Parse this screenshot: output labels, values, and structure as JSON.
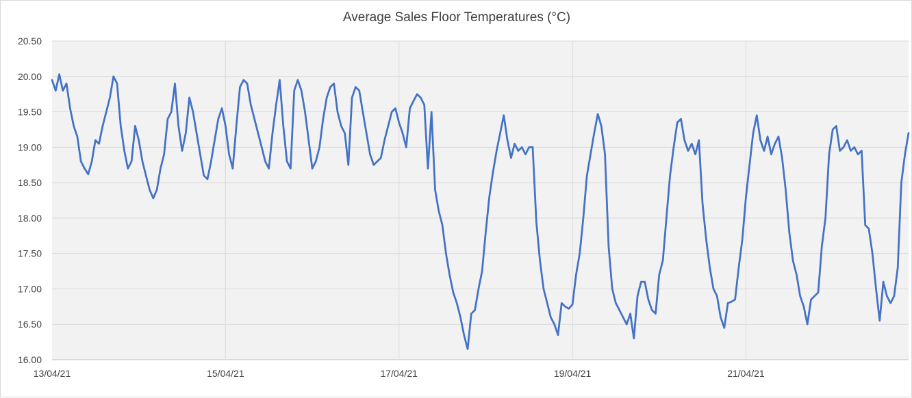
{
  "chart_data": {
    "type": "line",
    "title": "Average Sales Floor Temperatures (°C)",
    "xlabel": "",
    "ylabel": "",
    "ylim": [
      16.0,
      20.5
    ],
    "yticks": [
      "16.00",
      "16.50",
      "17.00",
      "17.50",
      "18.00",
      "18.50",
      "19.00",
      "19.50",
      "20.00",
      "20.50"
    ],
    "xlim": [
      "2021-04-13",
      "2021-04-22T21:00"
    ],
    "xticks": [
      "13/04/21",
      "15/04/21",
      "17/04/21",
      "19/04/21",
      "21/04/21"
    ],
    "xtick_dates": [
      "2021-04-13",
      "2021-04-15",
      "2021-04-17",
      "2021-04-19",
      "2021-04-21"
    ],
    "grid": true,
    "series": [
      {
        "color": "#4472c4",
        "points": [
          [
            "2021-04-13T00:00",
            19.95
          ],
          [
            "2021-04-13T01:00",
            19.8
          ],
          [
            "2021-04-13T02:00",
            20.03
          ],
          [
            "2021-04-13T03:00",
            19.8
          ],
          [
            "2021-04-13T04:00",
            19.9
          ],
          [
            "2021-04-13T05:00",
            19.55
          ],
          [
            "2021-04-13T06:00",
            19.3
          ],
          [
            "2021-04-13T07:00",
            19.15
          ],
          [
            "2021-04-13T08:00",
            18.8
          ],
          [
            "2021-04-13T09:00",
            18.7
          ],
          [
            "2021-04-13T10:00",
            18.62
          ],
          [
            "2021-04-13T11:00",
            18.8
          ],
          [
            "2021-04-13T12:00",
            19.1
          ],
          [
            "2021-04-13T13:00",
            19.05
          ],
          [
            "2021-04-13T14:00",
            19.3
          ],
          [
            "2021-04-13T15:00",
            19.5
          ],
          [
            "2021-04-13T16:00",
            19.7
          ],
          [
            "2021-04-13T17:00",
            20.0
          ],
          [
            "2021-04-13T18:00",
            19.9
          ],
          [
            "2021-04-13T19:00",
            19.3
          ],
          [
            "2021-04-13T20:00",
            18.95
          ],
          [
            "2021-04-13T21:00",
            18.7
          ],
          [
            "2021-04-13T22:00",
            18.8
          ],
          [
            "2021-04-13T23:00",
            19.3
          ],
          [
            "2021-04-14T00:00",
            19.1
          ],
          [
            "2021-04-14T01:00",
            18.8
          ],
          [
            "2021-04-14T02:00",
            18.6
          ],
          [
            "2021-04-14T03:00",
            18.4
          ],
          [
            "2021-04-14T04:00",
            18.28
          ],
          [
            "2021-04-14T05:00",
            18.4
          ],
          [
            "2021-04-14T06:00",
            18.7
          ],
          [
            "2021-04-14T07:00",
            18.9
          ],
          [
            "2021-04-14T08:00",
            19.4
          ],
          [
            "2021-04-14T09:00",
            19.5
          ],
          [
            "2021-04-14T10:00",
            19.9
          ],
          [
            "2021-04-14T11:00",
            19.3
          ],
          [
            "2021-04-14T12:00",
            18.95
          ],
          [
            "2021-04-14T13:00",
            19.2
          ],
          [
            "2021-04-14T14:00",
            19.7
          ],
          [
            "2021-04-14T15:00",
            19.5
          ],
          [
            "2021-04-14T16:00",
            19.2
          ],
          [
            "2021-04-14T17:00",
            18.9
          ],
          [
            "2021-04-14T18:00",
            18.6
          ],
          [
            "2021-04-14T19:00",
            18.55
          ],
          [
            "2021-04-14T20:00",
            18.8
          ],
          [
            "2021-04-14T21:00",
            19.1
          ],
          [
            "2021-04-14T22:00",
            19.4
          ],
          [
            "2021-04-14T23:00",
            19.55
          ],
          [
            "2021-04-15T00:00",
            19.3
          ],
          [
            "2021-04-15T01:00",
            18.9
          ],
          [
            "2021-04-15T02:00",
            18.7
          ],
          [
            "2021-04-15T03:00",
            19.3
          ],
          [
            "2021-04-15T04:00",
            19.85
          ],
          [
            "2021-04-15T05:00",
            19.95
          ],
          [
            "2021-04-15T06:00",
            19.9
          ],
          [
            "2021-04-15T07:00",
            19.6
          ],
          [
            "2021-04-15T08:00",
            19.4
          ],
          [
            "2021-04-15T09:00",
            19.2
          ],
          [
            "2021-04-15T10:00",
            19.0
          ],
          [
            "2021-04-15T11:00",
            18.8
          ],
          [
            "2021-04-15T12:00",
            18.7
          ],
          [
            "2021-04-15T13:00",
            19.2
          ],
          [
            "2021-04-15T14:00",
            19.6
          ],
          [
            "2021-04-15T15:00",
            19.95
          ],
          [
            "2021-04-15T16:00",
            19.3
          ],
          [
            "2021-04-15T17:00",
            18.8
          ],
          [
            "2021-04-15T18:00",
            18.7
          ],
          [
            "2021-04-15T19:00",
            19.8
          ],
          [
            "2021-04-15T20:00",
            19.95
          ],
          [
            "2021-04-15T21:00",
            19.8
          ],
          [
            "2021-04-15T22:00",
            19.5
          ],
          [
            "2021-04-15T23:00",
            19.1
          ],
          [
            "2021-04-16T00:00",
            18.7
          ],
          [
            "2021-04-16T01:00",
            18.8
          ],
          [
            "2021-04-16T02:00",
            19.0
          ],
          [
            "2021-04-16T03:00",
            19.4
          ],
          [
            "2021-04-16T04:00",
            19.7
          ],
          [
            "2021-04-16T05:00",
            19.85
          ],
          [
            "2021-04-16T06:00",
            19.9
          ],
          [
            "2021-04-16T07:00",
            19.5
          ],
          [
            "2021-04-16T08:00",
            19.3
          ],
          [
            "2021-04-16T09:00",
            19.2
          ],
          [
            "2021-04-16T10:00",
            18.75
          ],
          [
            "2021-04-16T11:00",
            19.7
          ],
          [
            "2021-04-16T12:00",
            19.85
          ],
          [
            "2021-04-16T13:00",
            19.8
          ],
          [
            "2021-04-16T14:00",
            19.5
          ],
          [
            "2021-04-16T15:00",
            19.2
          ],
          [
            "2021-04-16T16:00",
            18.9
          ],
          [
            "2021-04-16T17:00",
            18.75
          ],
          [
            "2021-04-16T18:00",
            18.8
          ],
          [
            "2021-04-16T19:00",
            18.85
          ],
          [
            "2021-04-16T20:00",
            19.1
          ],
          [
            "2021-04-16T21:00",
            19.3
          ],
          [
            "2021-04-16T22:00",
            19.5
          ],
          [
            "2021-04-16T23:00",
            19.55
          ],
          [
            "2021-04-17T00:00",
            19.35
          ],
          [
            "2021-04-17T01:00",
            19.2
          ],
          [
            "2021-04-17T02:00",
            19.0
          ],
          [
            "2021-04-17T03:00",
            19.55
          ],
          [
            "2021-04-17T04:00",
            19.65
          ],
          [
            "2021-04-17T05:00",
            19.75
          ],
          [
            "2021-04-17T06:00",
            19.7
          ],
          [
            "2021-04-17T07:00",
            19.6
          ],
          [
            "2021-04-17T08:00",
            18.7
          ],
          [
            "2021-04-17T09:00",
            19.5
          ],
          [
            "2021-04-17T10:00",
            18.4
          ],
          [
            "2021-04-17T11:00",
            18.1
          ],
          [
            "2021-04-17T12:00",
            17.9
          ],
          [
            "2021-04-17T13:00",
            17.5
          ],
          [
            "2021-04-17T14:00",
            17.2
          ],
          [
            "2021-04-17T15:00",
            16.95
          ],
          [
            "2021-04-17T16:00",
            16.8
          ],
          [
            "2021-04-17T17:00",
            16.6
          ],
          [
            "2021-04-17T18:00",
            16.35
          ],
          [
            "2021-04-17T19:00",
            16.15
          ],
          [
            "2021-04-17T20:00",
            16.65
          ],
          [
            "2021-04-17T21:00",
            16.7
          ],
          [
            "2021-04-17T22:00",
            17.0
          ],
          [
            "2021-04-17T23:00",
            17.25
          ],
          [
            "2021-04-18T00:00",
            17.8
          ],
          [
            "2021-04-18T01:00",
            18.3
          ],
          [
            "2021-04-18T02:00",
            18.65
          ],
          [
            "2021-04-18T03:00",
            18.95
          ],
          [
            "2021-04-18T04:00",
            19.2
          ],
          [
            "2021-04-18T05:00",
            19.45
          ],
          [
            "2021-04-18T06:00",
            19.1
          ],
          [
            "2021-04-18T07:00",
            18.85
          ],
          [
            "2021-04-18T08:00",
            19.05
          ],
          [
            "2021-04-18T09:00",
            18.95
          ],
          [
            "2021-04-18T10:00",
            19.0
          ],
          [
            "2021-04-18T11:00",
            18.9
          ],
          [
            "2021-04-18T12:00",
            19.0
          ],
          [
            "2021-04-18T13:00",
            19.0
          ],
          [
            "2021-04-18T14:00",
            17.95
          ],
          [
            "2021-04-18T15:00",
            17.4
          ],
          [
            "2021-04-18T16:00",
            17.0
          ],
          [
            "2021-04-18T17:00",
            16.8
          ],
          [
            "2021-04-18T18:00",
            16.6
          ],
          [
            "2021-04-18T19:00",
            16.5
          ],
          [
            "2021-04-18T20:00",
            16.35
          ],
          [
            "2021-04-18T21:00",
            16.8
          ],
          [
            "2021-04-18T22:00",
            16.75
          ],
          [
            "2021-04-18T23:00",
            16.72
          ],
          [
            "2021-04-19T00:00",
            16.78
          ],
          [
            "2021-04-19T01:00",
            17.2
          ],
          [
            "2021-04-19T02:00",
            17.5
          ],
          [
            "2021-04-19T03:00",
            18.0
          ],
          [
            "2021-04-19T04:00",
            18.6
          ],
          [
            "2021-04-19T05:00",
            18.9
          ],
          [
            "2021-04-19T06:00",
            19.2
          ],
          [
            "2021-04-19T07:00",
            19.47
          ],
          [
            "2021-04-19T08:00",
            19.3
          ],
          [
            "2021-04-19T09:00",
            18.9
          ],
          [
            "2021-04-19T10:00",
            17.6
          ],
          [
            "2021-04-19T11:00",
            17.0
          ],
          [
            "2021-04-19T12:00",
            16.8
          ],
          [
            "2021-04-19T13:00",
            16.7
          ],
          [
            "2021-04-19T14:00",
            16.6
          ],
          [
            "2021-04-19T15:00",
            16.5
          ],
          [
            "2021-04-19T16:00",
            16.65
          ],
          [
            "2021-04-19T17:00",
            16.3
          ],
          [
            "2021-04-19T18:00",
            16.9
          ],
          [
            "2021-04-19T19:00",
            17.1
          ],
          [
            "2021-04-19T20:00",
            17.1
          ],
          [
            "2021-04-19T21:00",
            16.85
          ],
          [
            "2021-04-19T22:00",
            16.7
          ],
          [
            "2021-04-19T23:00",
            16.65
          ],
          [
            "2021-04-20T00:00",
            17.2
          ],
          [
            "2021-04-20T01:00",
            17.4
          ],
          [
            "2021-04-20T02:00",
            18.0
          ],
          [
            "2021-04-20T03:00",
            18.6
          ],
          [
            "2021-04-20T04:00",
            19.0
          ],
          [
            "2021-04-20T05:00",
            19.35
          ],
          [
            "2021-04-20T06:00",
            19.4
          ],
          [
            "2021-04-20T07:00",
            19.1
          ],
          [
            "2021-04-20T08:00",
            18.95
          ],
          [
            "2021-04-20T09:00",
            19.05
          ],
          [
            "2021-04-20T10:00",
            18.9
          ],
          [
            "2021-04-20T11:00",
            19.1
          ],
          [
            "2021-04-20T12:00",
            18.2
          ],
          [
            "2021-04-20T13:00",
            17.7
          ],
          [
            "2021-04-20T14:00",
            17.3
          ],
          [
            "2021-04-20T15:00",
            17.0
          ],
          [
            "2021-04-20T16:00",
            16.9
          ],
          [
            "2021-04-20T17:00",
            16.6
          ],
          [
            "2021-04-20T18:00",
            16.45
          ],
          [
            "2021-04-20T19:00",
            16.8
          ],
          [
            "2021-04-20T20:00",
            16.82
          ],
          [
            "2021-04-20T21:00",
            16.85
          ],
          [
            "2021-04-20T22:00",
            17.3
          ],
          [
            "2021-04-20T23:00",
            17.7
          ],
          [
            "2021-04-21T00:00",
            18.3
          ],
          [
            "2021-04-21T01:00",
            18.75
          ],
          [
            "2021-04-21T02:00",
            19.2
          ],
          [
            "2021-04-21T03:00",
            19.45
          ],
          [
            "2021-04-21T04:00",
            19.1
          ],
          [
            "2021-04-21T05:00",
            18.95
          ],
          [
            "2021-04-21T06:00",
            19.15
          ],
          [
            "2021-04-21T07:00",
            18.9
          ],
          [
            "2021-04-21T08:00",
            19.05
          ],
          [
            "2021-04-21T09:00",
            19.15
          ],
          [
            "2021-04-21T10:00",
            18.85
          ],
          [
            "2021-04-21T11:00",
            18.4
          ],
          [
            "2021-04-21T12:00",
            17.8
          ],
          [
            "2021-04-21T13:00",
            17.4
          ],
          [
            "2021-04-21T14:00",
            17.2
          ],
          [
            "2021-04-21T15:00",
            16.9
          ],
          [
            "2021-04-21T16:00",
            16.75
          ],
          [
            "2021-04-21T17:00",
            16.5
          ],
          [
            "2021-04-21T18:00",
            16.85
          ],
          [
            "2021-04-21T19:00",
            16.9
          ],
          [
            "2021-04-21T20:00",
            16.95
          ],
          [
            "2021-04-21T21:00",
            17.6
          ],
          [
            "2021-04-21T22:00",
            18.0
          ],
          [
            "2021-04-21T23:00",
            18.9
          ],
          [
            "2021-04-22T00:00",
            19.25
          ],
          [
            "2021-04-22T01:00",
            19.3
          ],
          [
            "2021-04-22T02:00",
            18.95
          ],
          [
            "2021-04-22T03:00",
            19.0
          ],
          [
            "2021-04-22T04:00",
            19.1
          ],
          [
            "2021-04-22T05:00",
            18.95
          ],
          [
            "2021-04-22T06:00",
            19.0
          ],
          [
            "2021-04-22T07:00",
            18.9
          ],
          [
            "2021-04-22T08:00",
            18.95
          ],
          [
            "2021-04-22T09:00",
            17.9
          ],
          [
            "2021-04-22T10:00",
            17.85
          ],
          [
            "2021-04-22T11:00",
            17.5
          ],
          [
            "2021-04-22T12:00",
            17.0
          ],
          [
            "2021-04-22T13:00",
            16.55
          ],
          [
            "2021-04-22T14:00",
            17.1
          ],
          [
            "2021-04-22T15:00",
            16.9
          ],
          [
            "2021-04-22T16:00",
            16.8
          ],
          [
            "2021-04-22T17:00",
            16.9
          ],
          [
            "2021-04-22T18:00",
            17.3
          ],
          [
            "2021-04-22T19:00",
            18.5
          ],
          [
            "2021-04-22T20:00",
            18.9
          ],
          [
            "2021-04-22T21:00",
            19.2
          ]
        ]
      }
    ]
  }
}
